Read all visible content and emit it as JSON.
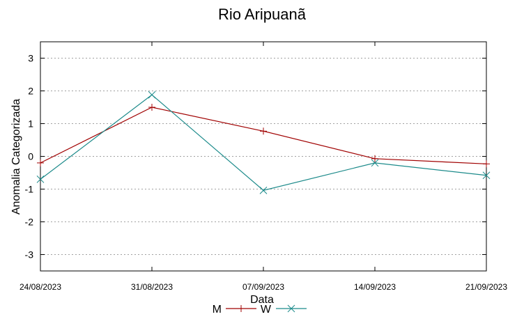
{
  "chart_data": {
    "type": "line",
    "title": "Rio Aripuanã",
    "xlabel": "Data",
    "ylabel": "Anomalia Categorizada",
    "categories": [
      "24/08/2023",
      "31/08/2023",
      "07/09/2023",
      "14/09/2023",
      "21/09/2023"
    ],
    "yticks": [
      "3",
      "2",
      "1",
      "0",
      "-1",
      "-2",
      "-3"
    ],
    "ylim": [
      -3.5,
      3.5
    ],
    "grid": "horizontal dotted",
    "legend_position": "bottom-center",
    "series": [
      {
        "name": "M",
        "color": "#a00000",
        "marker": "plus",
        "values": [
          -0.2,
          1.5,
          0.77,
          -0.07,
          -0.23
        ]
      },
      {
        "name": "W",
        "color": "#1b8a8a",
        "marker": "cross",
        "values": [
          -0.7,
          1.88,
          -1.04,
          -0.2,
          -0.58
        ]
      }
    ]
  }
}
